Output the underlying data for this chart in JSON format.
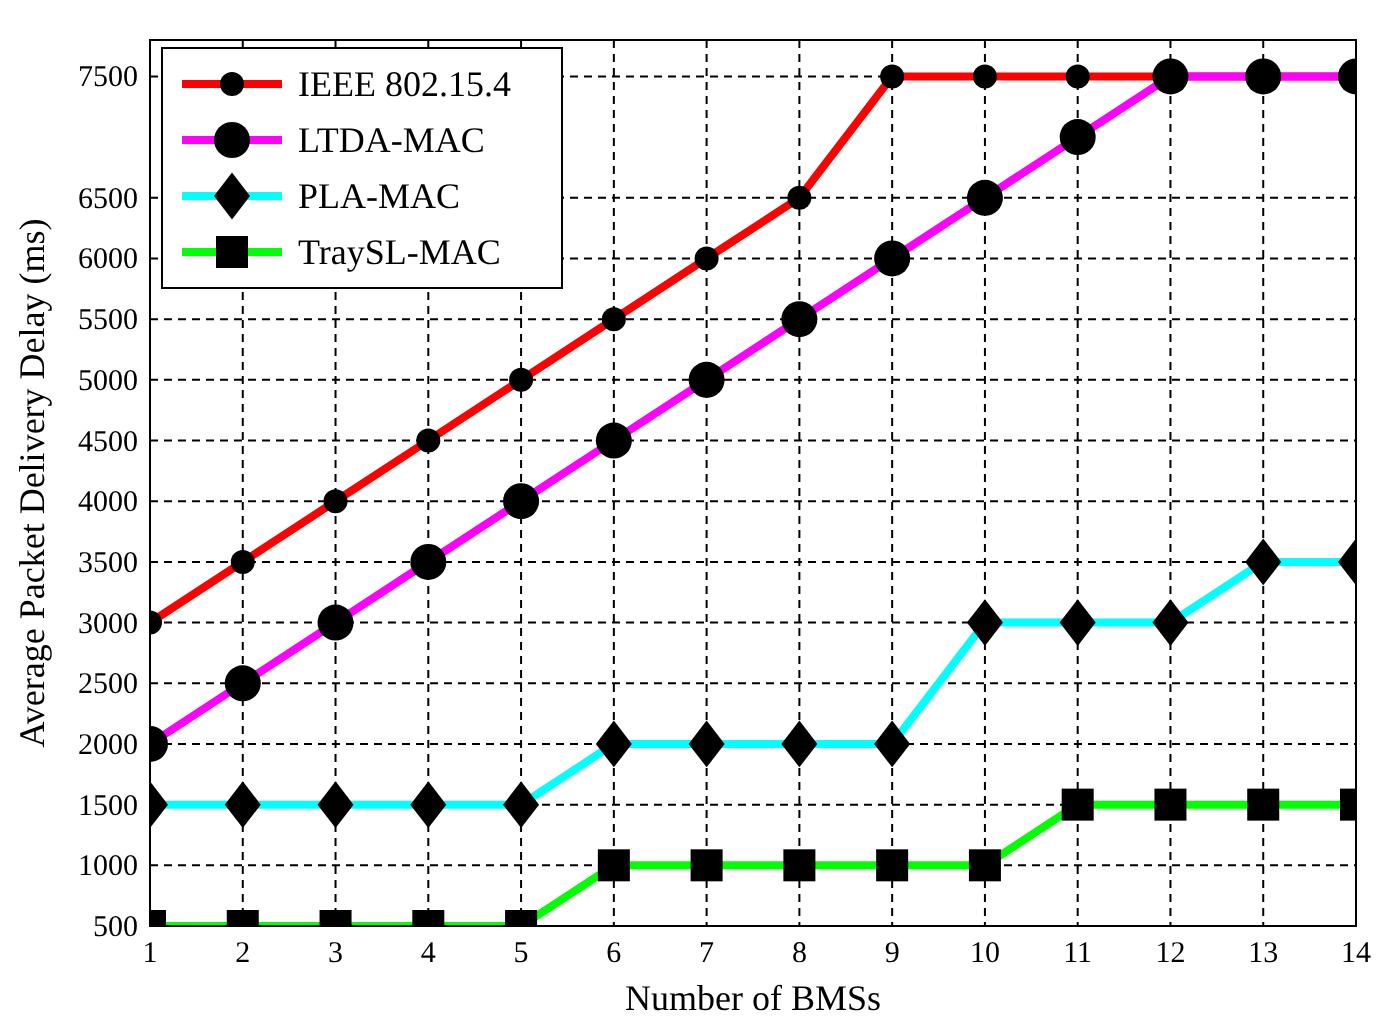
{
  "chart_data": {
    "type": "line",
    "xlabel": "Number of BMSs",
    "ylabel": "Average Packet Delivery Delay (ms)",
    "x": [
      1,
      2,
      3,
      4,
      5,
      6,
      7,
      8,
      9,
      10,
      11,
      12,
      13,
      14
    ],
    "xlim": [
      1,
      14
    ],
    "xticks": [
      1,
      2,
      3,
      4,
      5,
      6,
      7,
      8,
      9,
      10,
      11,
      12,
      13,
      14
    ],
    "ylim": [
      500,
      7800
    ],
    "yticks": [
      500,
      1000,
      1500,
      2000,
      2500,
      3000,
      3500,
      4000,
      4500,
      5000,
      5500,
      6000,
      6500,
      7500
    ],
    "grid": true,
    "legend": "top left",
    "line_style": "solid",
    "series": [
      {
        "name": "IEEE 802.15.4",
        "color": "#ff0000",
        "marker": "circle",
        "values": [
          3000,
          3500,
          4000,
          4500,
          5000,
          5500,
          6000,
          6500,
          7500,
          7500,
          7500,
          7500,
          7500,
          7500
        ]
      },
      {
        "name": "LTDA-MAC",
        "color": "#ff00ff",
        "marker": "circle",
        "values": [
          2000,
          2500,
          3000,
          3500,
          4000,
          4500,
          5000,
          5500,
          6000,
          6500,
          7000,
          7500,
          7500,
          7500
        ]
      },
      {
        "name": "PLA-MAC",
        "color": "#00ffff",
        "marker": "diamond",
        "values": [
          1500,
          1500,
          1500,
          1500,
          1500,
          2000,
          2000,
          2000,
          2000,
          3000,
          3000,
          3000,
          3500,
          3500
        ]
      },
      {
        "name": "TraySL-MAC",
        "color": "#00ff00",
        "marker": "square",
        "values": [
          500,
          500,
          500,
          500,
          500,
          1000,
          1000,
          1000,
          1000,
          1000,
          1500,
          1500,
          1500,
          1500
        ]
      }
    ]
  }
}
